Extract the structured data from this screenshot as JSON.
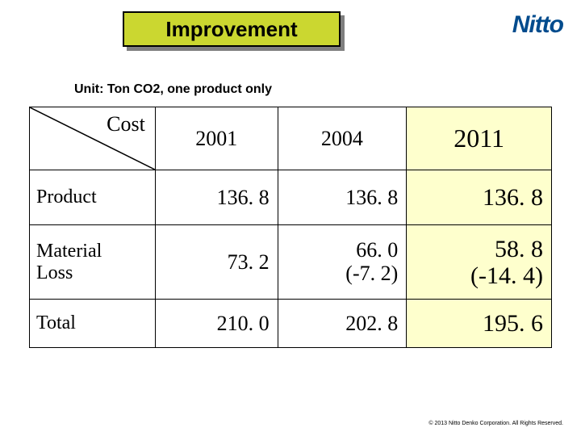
{
  "title": "Improvement",
  "logo_text": "Nitto",
  "logo_color": "#004b8d",
  "title_bg": "#cbd730",
  "highlight_bg": "#feffcd",
  "unit_line": "Unit: Ton CO2,  one product only",
  "table": {
    "corner_label": "Cost",
    "columns": [
      "2001",
      "2004",
      "2011"
    ],
    "rows": [
      {
        "label": "Product",
        "cells": [
          "136. 8",
          "136. 8",
          "136. 8"
        ]
      },
      {
        "label": "Material\nLoss",
        "cells": [
          "73. 2",
          "66. 0\n(-7. 2)",
          "58. 8\n(-14. 4)"
        ]
      },
      {
        "label": "Total",
        "cells": [
          "210. 0",
          "202. 8",
          "195. 6"
        ]
      }
    ]
  },
  "copyright": "© 2013 Nitto Denko Corporation. All Rights Reserved."
}
